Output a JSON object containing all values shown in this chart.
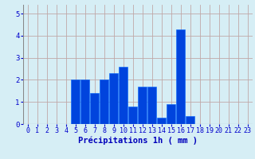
{
  "hours": [
    0,
    1,
    2,
    3,
    4,
    5,
    6,
    7,
    8,
    9,
    10,
    11,
    12,
    13,
    14,
    15,
    16,
    17,
    18,
    19,
    20,
    21,
    22,
    23
  ],
  "values": [
    0,
    0,
    0,
    0,
    0,
    2.0,
    2.0,
    1.4,
    2.0,
    2.3,
    2.6,
    0.8,
    1.7,
    1.7,
    0.3,
    0.9,
    4.3,
    0.35,
    0,
    0,
    0,
    0,
    0,
    0
  ],
  "bar_color": "#0044dd",
  "bar_edge_color": "#0066ff",
  "background_color": "#d6eef5",
  "grid_color": "#c0a8a8",
  "xlabel": "Précipitations 1h ( mm )",
  "xlabel_color": "#0000bb",
  "tick_color": "#0000cc",
  "ylim": [
    0,
    5.4
  ],
  "yticks": [
    0,
    1,
    2,
    3,
    4,
    5
  ],
  "xlim": [
    -0.5,
    23.5
  ],
  "tick_fontsize": 6.0,
  "ylabel_fontsize": 7.5
}
